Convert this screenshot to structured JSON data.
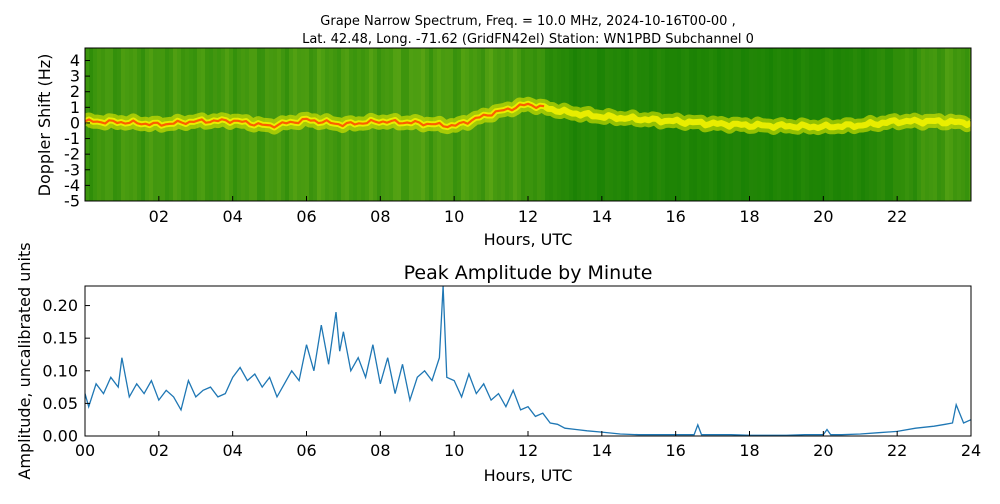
{
  "chart_data": [
    {
      "type": "heatmap",
      "title_line1": "Grape Narrow Spectrum, Freq. = 10.0 MHz, 2024-10-16T00-00 ,",
      "title_line2": "Lat.  42.48, Long. -71.62 (GridFN42el) Station: WN1PBD Subchannel 0",
      "xlabel": "Hours, UTC",
      "ylabel": "Doppler Shift (Hz)",
      "xlim": [
        0,
        24
      ],
      "ylim": [
        -5,
        4.8
      ],
      "x_ticks": [
        "02",
        "04",
        "06",
        "08",
        "10",
        "12",
        "14",
        "16",
        "18",
        "20",
        "22"
      ],
      "x_tick_values": [
        2,
        4,
        6,
        8,
        10,
        12,
        14,
        16,
        18,
        20,
        22
      ],
      "y_ticks": [
        "4",
        "3",
        "2",
        "1",
        "0",
        "-1",
        "-2",
        "-3",
        "-4",
        "-5"
      ],
      "y_tick_values": [
        4,
        3,
        2,
        1,
        0,
        -1,
        -2,
        -3,
        -4,
        -5
      ],
      "colors": {
        "background": "#2f8a12",
        "quiet": "#0a7a00",
        "signal": "#f2f200",
        "peak": "#ff4500"
      },
      "trace": {
        "x": [
          0,
          1,
          2,
          3,
          4,
          5,
          6,
          7,
          8,
          9,
          10,
          11,
          12,
          13,
          14,
          15,
          16,
          17,
          18,
          19,
          20,
          21,
          22,
          23,
          24
        ],
        "y": [
          0.1,
          0.05,
          -0.1,
          0.1,
          0.15,
          -0.2,
          0.2,
          -0.1,
          0.1,
          0.0,
          -0.2,
          0.6,
          1.2,
          0.7,
          0.4,
          0.25,
          0.1,
          -0.05,
          -0.15,
          -0.2,
          -0.25,
          -0.15,
          0.1,
          0.1,
          0.0
        ]
      },
      "intensity": {
        "x": [
          0,
          1,
          2,
          3,
          4,
          5,
          6,
          7,
          8,
          9,
          10,
          11,
          12,
          13,
          14,
          15,
          16,
          17,
          18,
          19,
          20,
          21,
          22,
          23,
          24
        ],
        "y": [
          0.7,
          0.8,
          0.8,
          0.75,
          0.8,
          0.8,
          0.9,
          0.8,
          0.85,
          0.95,
          0.85,
          0.9,
          0.7,
          0.3,
          0.3,
          0.3,
          0.25,
          0.25,
          0.25,
          0.25,
          0.25,
          0.3,
          0.45,
          0.8,
          0.8
        ]
      }
    },
    {
      "type": "line",
      "title": "Peak Amplitude by Minute",
      "xlabel": "Hours, UTC",
      "ylabel": "Amplitude, uncalibrated units",
      "xlim": [
        0,
        24
      ],
      "ylim": [
        0,
        0.23
      ],
      "x_ticks": [
        "00",
        "02",
        "04",
        "06",
        "08",
        "10",
        "12",
        "14",
        "16",
        "18",
        "20",
        "22",
        "24"
      ],
      "x_tick_values": [
        0,
        2,
        4,
        6,
        8,
        10,
        12,
        14,
        16,
        18,
        20,
        22,
        24
      ],
      "y_ticks": [
        "0.00",
        "0.05",
        "0.10",
        "0.15",
        "0.20"
      ],
      "y_tick_values": [
        0,
        0.05,
        0.1,
        0.15,
        0.2
      ],
      "line_color": "#1f77b4",
      "series": [
        {
          "x": [
            0,
            0.1,
            0.3,
            0.5,
            0.7,
            0.9,
            1.0,
            1.2,
            1.4,
            1.6,
            1.8,
            2.0,
            2.2,
            2.4,
            2.6,
            2.8,
            3.0,
            3.2,
            3.4,
            3.6,
            3.8,
            4.0,
            4.2,
            4.4,
            4.6,
            4.8,
            5.0,
            5.2,
            5.4,
            5.6,
            5.8,
            6.0,
            6.2,
            6.4,
            6.6,
            6.8,
            6.9,
            7.0,
            7.2,
            7.4,
            7.6,
            7.8,
            8.0,
            8.2,
            8.4,
            8.6,
            8.8,
            9.0,
            9.2,
            9.4,
            9.6,
            9.7,
            9.8,
            10.0,
            10.2,
            10.4,
            10.6,
            10.8,
            11.0,
            11.2,
            11.4,
            11.6,
            11.8,
            12.0,
            12.2,
            12.4,
            12.6,
            12.8,
            13.0,
            13.3,
            13.6,
            14.0,
            14.5,
            15.0,
            15.5,
            16.0,
            16.5,
            16.6,
            16.7,
            17.0,
            17.5,
            18.0,
            18.5,
            19.0,
            19.5,
            20.0,
            20.1,
            20.2,
            20.5,
            21.0,
            21.5,
            22.0,
            22.5,
            23.0,
            23.3,
            23.5,
            23.6,
            23.8,
            24.0
          ],
          "values": [
            0.065,
            0.045,
            0.08,
            0.065,
            0.09,
            0.075,
            0.12,
            0.06,
            0.08,
            0.065,
            0.085,
            0.055,
            0.07,
            0.06,
            0.04,
            0.085,
            0.06,
            0.07,
            0.075,
            0.06,
            0.065,
            0.09,
            0.105,
            0.085,
            0.095,
            0.075,
            0.09,
            0.06,
            0.08,
            0.1,
            0.085,
            0.14,
            0.1,
            0.17,
            0.11,
            0.19,
            0.13,
            0.16,
            0.1,
            0.12,
            0.09,
            0.14,
            0.08,
            0.12,
            0.065,
            0.11,
            0.055,
            0.09,
            0.1,
            0.085,
            0.12,
            0.23,
            0.09,
            0.085,
            0.06,
            0.095,
            0.065,
            0.08,
            0.055,
            0.065,
            0.045,
            0.07,
            0.04,
            0.045,
            0.03,
            0.035,
            0.02,
            0.018,
            0.012,
            0.01,
            0.008,
            0.006,
            0.003,
            0.002,
            0.002,
            0.002,
            0.002,
            0.017,
            0.002,
            0.002,
            0.002,
            0.001,
            0.001,
            0.001,
            0.002,
            0.002,
            0.01,
            0.002,
            0.002,
            0.003,
            0.005,
            0.007,
            0.012,
            0.015,
            0.018,
            0.02,
            0.048,
            0.02,
            0.025
          ]
        }
      ]
    }
  ]
}
